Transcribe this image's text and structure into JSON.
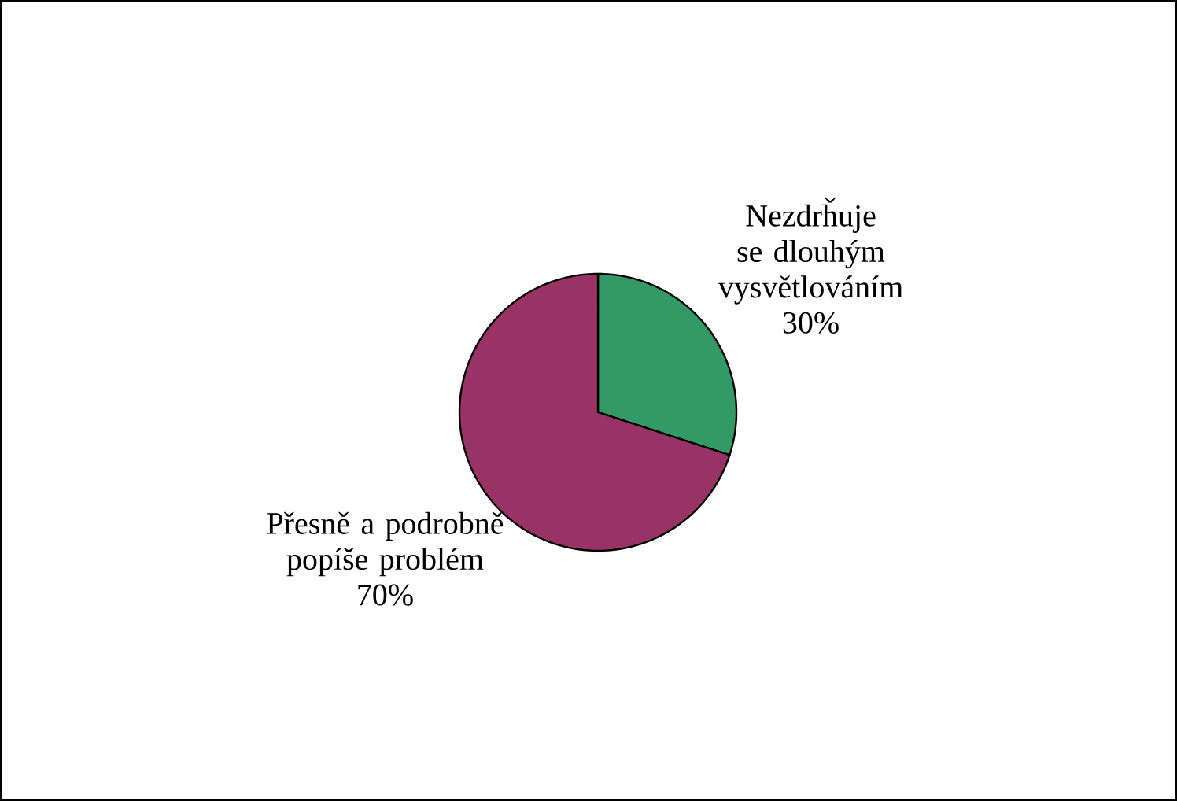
{
  "chart_data": {
    "type": "pie",
    "categories": [
      "Nezdrȟuje se dlouhým vysvětlováním",
      "Přesně a podrobně popíše problém"
    ],
    "values": [
      30,
      70
    ],
    "value_labels": [
      "30%",
      "70%"
    ],
    "colors": [
      "#339966",
      "#993366"
    ]
  }
}
